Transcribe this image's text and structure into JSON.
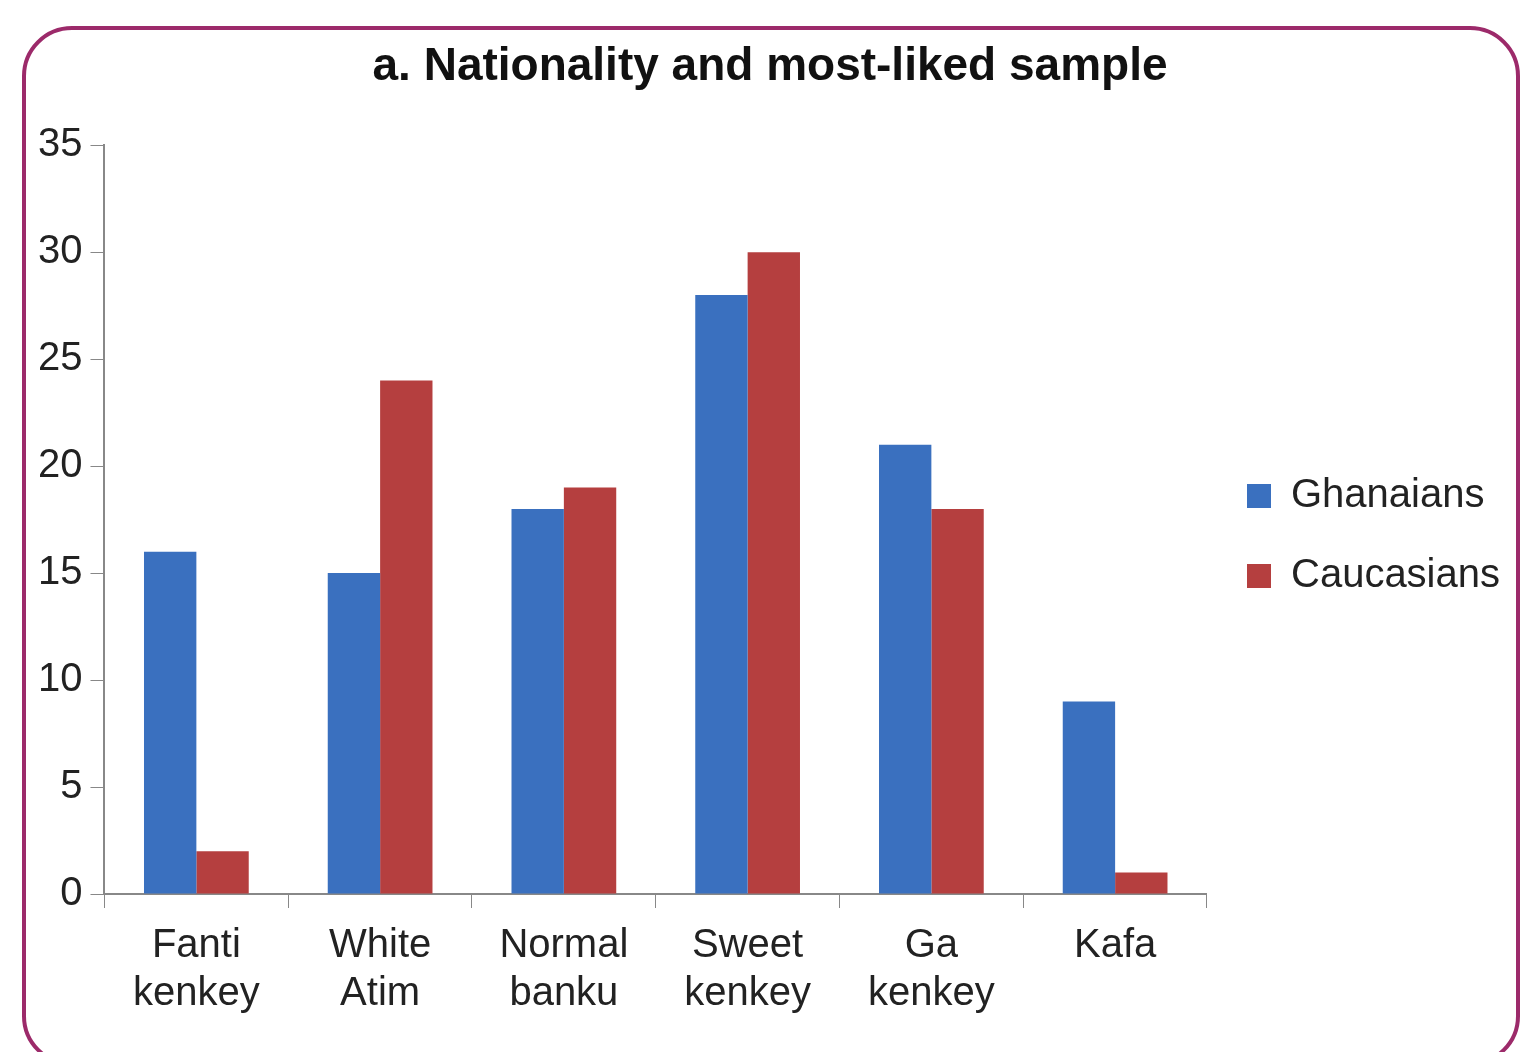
{
  "chart_data": {
    "type": "bar",
    "title": "a. Nationality and most-liked sample",
    "categories": [
      "Fanti kenkey",
      "White Atim",
      "Normal banku",
      "Sweet kenkey",
      "Ga kenkey",
      "Kafa"
    ],
    "series": [
      {
        "name": "Ghanaians",
        "color": "#3a70bf",
        "values": [
          16,
          15,
          18,
          28,
          21,
          9
        ]
      },
      {
        "name": "Caucasians",
        "color": "#b53f3f",
        "values": [
          2,
          24,
          19,
          30,
          18,
          1
        ]
      }
    ],
    "ylim": [
      0,
      35
    ],
    "yticks": [
      0,
      5,
      10,
      15,
      20,
      25,
      30,
      35
    ],
    "grid": false,
    "legend": "right"
  }
}
